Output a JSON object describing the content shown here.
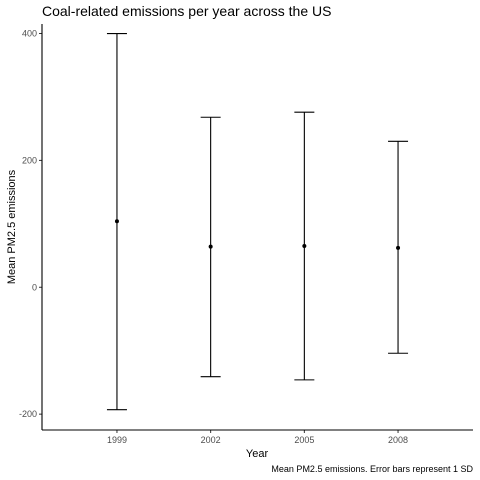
{
  "chart_data": {
    "type": "scatter",
    "title": "Coal-related emissions per year across the US",
    "xlabel": "Year",
    "ylabel": "Mean PM2.5 emissions",
    "caption": "Mean PM2.5 emissions. Error bars represent 1 SD",
    "categories": [
      "1999",
      "2002",
      "2005",
      "2008"
    ],
    "mean": [
      104,
      64,
      65,
      62
    ],
    "lower": [
      -193,
      -141,
      -146,
      -104
    ],
    "upper": [
      400,
      268,
      276,
      230
    ],
    "yticks": [
      -200,
      0,
      200,
      400
    ],
    "ylim": [
      -225,
      415
    ],
    "grid": false,
    "colors": {
      "point": "#000000",
      "axis": "#000000",
      "tick_text": "#4d4d4d"
    }
  }
}
